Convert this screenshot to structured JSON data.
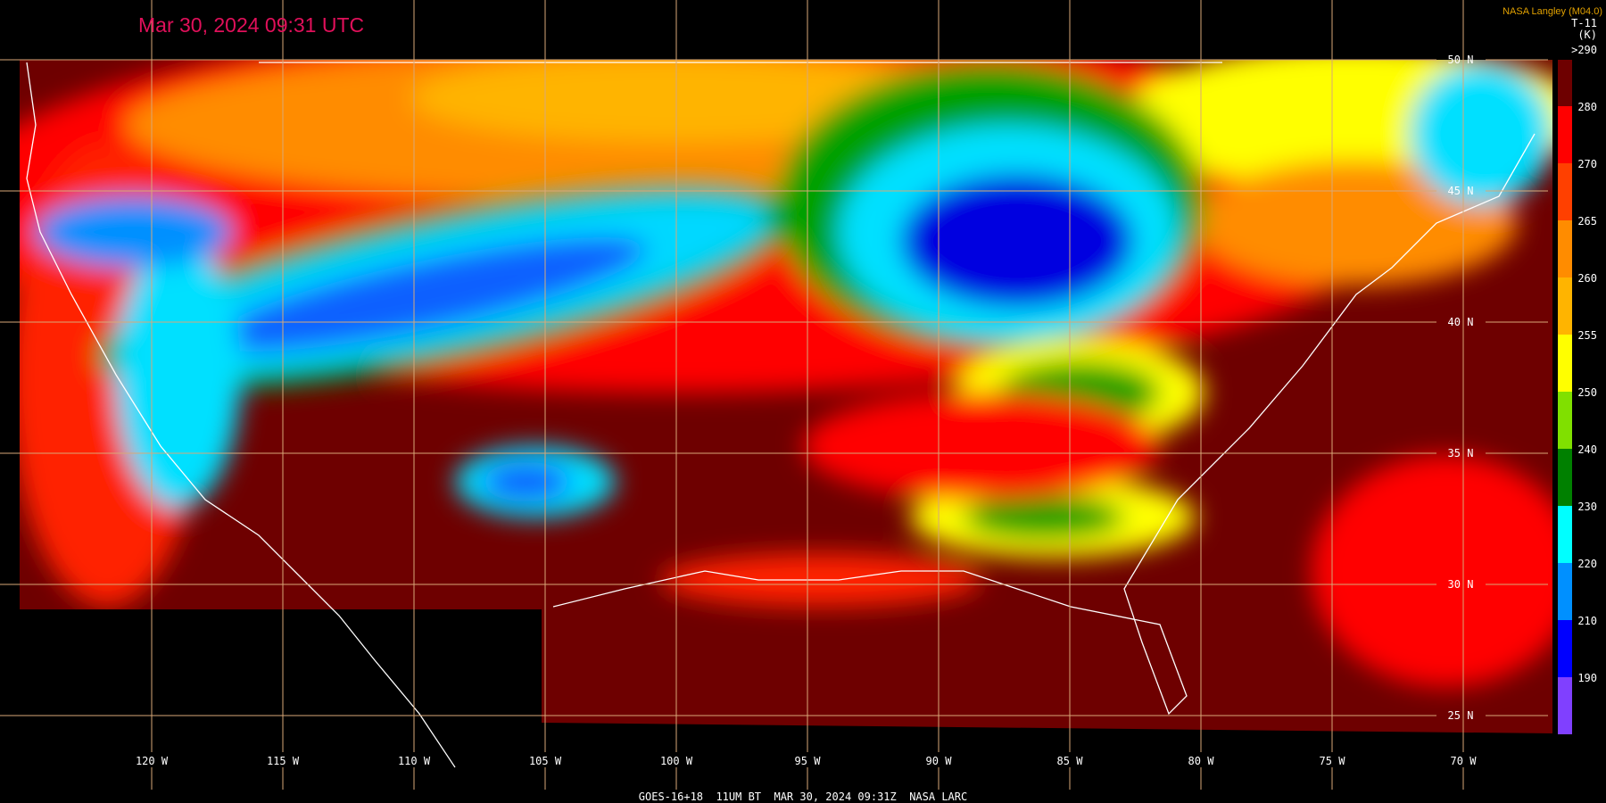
{
  "header": {
    "timestamp": "Mar 30, 2024 09:31 UTC",
    "source": "NASA Langley (M04.0)",
    "product": "T-11",
    "units": "(K)"
  },
  "colorbar": [
    {
      "label": ">290",
      "color": "#6e0000"
    },
    {
      "label": "280",
      "color": "#ff0000"
    },
    {
      "label": "270",
      "color": "#ff4000"
    },
    {
      "label": "265",
      "color": "#ff8c00"
    },
    {
      "label": "260",
      "color": "#ffb400"
    },
    {
      "label": "255",
      "color": "#ffff00"
    },
    {
      "label": "250",
      "color": "#80e000"
    },
    {
      "label": "240",
      "color": "#008000"
    },
    {
      "label": "230",
      "color": "#00ffff"
    },
    {
      "label": "220",
      "color": "#0090ff"
    },
    {
      "label": "210",
      "color": "#0000ff"
    },
    {
      "label": "190",
      "color": "#8040ff"
    }
  ],
  "latitudes": [
    "50 N",
    "45 N",
    "40 N",
    "35 N",
    "30 N",
    "25 N"
  ],
  "longitudes": [
    "120 W",
    "115 W",
    "110 W",
    "105 W",
    "100 W",
    "95 W",
    "90 W",
    "85 W",
    "80 W",
    "75 W",
    "70 W"
  ],
  "footer": "GOES-16+18  11UM BT  MAR 30, 2024 09:31Z  NASA LARC"
}
